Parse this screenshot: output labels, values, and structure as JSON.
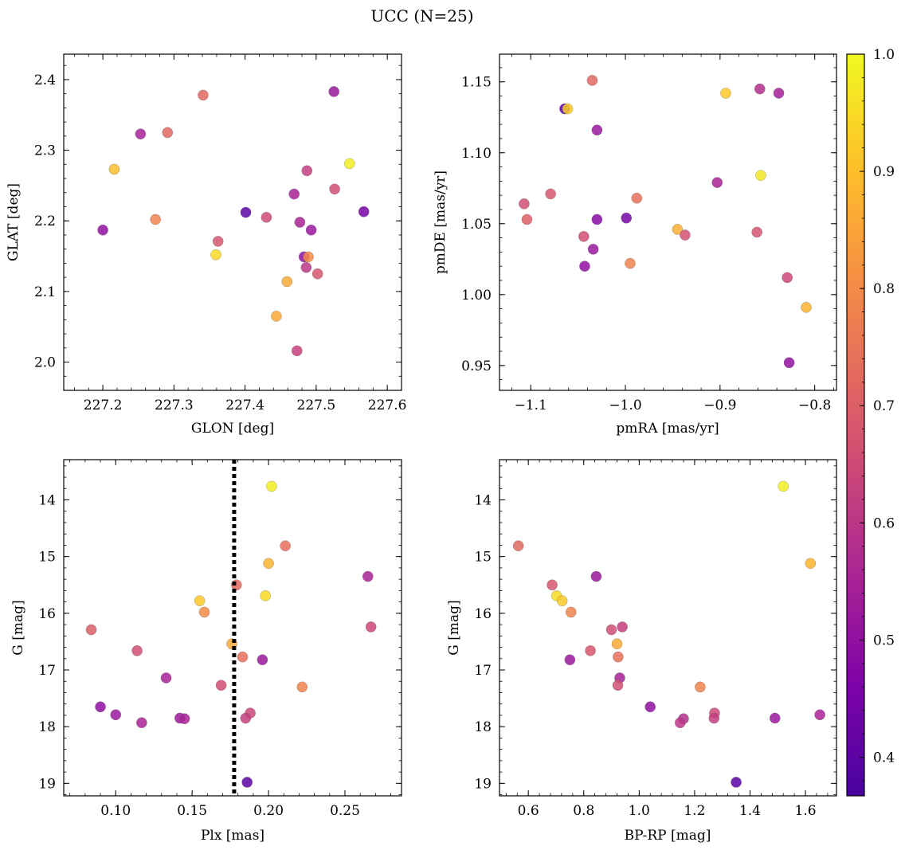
{
  "figure": {
    "suptitle": "UCC (N=25)"
  },
  "colorbar": {
    "colormap": "plasma",
    "range": [
      0.367,
      1.0
    ],
    "ticks": [
      0.4,
      0.5,
      0.6,
      0.7,
      0.8,
      0.9,
      1.0
    ],
    "tick_labels": [
      "0.4",
      "0.5",
      "0.6",
      "0.7",
      "0.8",
      "0.9",
      "1.0"
    ]
  },
  "chart_data": [
    {
      "type": "scatter",
      "id": "glon-glat",
      "xlabel": "GLON [deg]",
      "ylabel": "GLAT [deg]",
      "xlim": [
        227.145,
        227.62
      ],
      "ylim": [
        1.96,
        2.436
      ],
      "xticks": [
        227.2,
        227.3,
        227.4,
        227.5,
        227.6
      ],
      "xtick_labels": [
        "227.2",
        "227.3",
        "227.4",
        "227.5",
        "227.6"
      ],
      "yticks": [
        2.0,
        2.1,
        2.2,
        2.3,
        2.4
      ],
      "ytick_labels": [
        "2.0",
        "2.1",
        "2.2",
        "2.3",
        "2.4"
      ],
      "points": [
        {
          "x": 227.525,
          "y": 2.383,
          "c": 0.52
        },
        {
          "x": 227.341,
          "y": 2.378,
          "c": 0.72
        },
        {
          "x": 227.253,
          "y": 2.323,
          "c": 0.55
        },
        {
          "x": 227.291,
          "y": 2.325,
          "c": 0.72
        },
        {
          "x": 227.216,
          "y": 2.273,
          "c": 0.9
        },
        {
          "x": 227.547,
          "y": 2.281,
          "c": 0.98
        },
        {
          "x": 227.487,
          "y": 2.271,
          "c": 0.62
        },
        {
          "x": 227.526,
          "y": 2.245,
          "c": 0.66
        },
        {
          "x": 227.469,
          "y": 2.238,
          "c": 0.55
        },
        {
          "x": 227.567,
          "y": 2.213,
          "c": 0.45
        },
        {
          "x": 227.401,
          "y": 2.212,
          "c": 0.4
        },
        {
          "x": 227.43,
          "y": 2.205,
          "c": 0.65
        },
        {
          "x": 227.274,
          "y": 2.202,
          "c": 0.78
        },
        {
          "x": 227.477,
          "y": 2.198,
          "c": 0.55
        },
        {
          "x": 227.493,
          "y": 2.187,
          "c": 0.52
        },
        {
          "x": 227.2,
          "y": 2.187,
          "c": 0.5
        },
        {
          "x": 227.362,
          "y": 2.171,
          "c": 0.68
        },
        {
          "x": 227.359,
          "y": 2.152,
          "c": 0.95
        },
        {
          "x": 227.483,
          "y": 2.149,
          "c": 0.5
        },
        {
          "x": 227.489,
          "y": 2.149,
          "c": 0.8
        },
        {
          "x": 227.486,
          "y": 2.134,
          "c": 0.6
        },
        {
          "x": 227.502,
          "y": 2.125,
          "c": 0.68
        },
        {
          "x": 227.459,
          "y": 2.114,
          "c": 0.86
        },
        {
          "x": 227.444,
          "y": 2.065,
          "c": 0.86
        },
        {
          "x": 227.473,
          "y": 2.016,
          "c": 0.63
        }
      ]
    },
    {
      "type": "scatter",
      "id": "pmra-pmde",
      "xlabel": "pmRA [mas/yr]",
      "ylabel": "pmDE [mas/yr]",
      "xlim": [
        -1.133,
        -0.777
      ],
      "ylim": [
        0.9325,
        1.1695
      ],
      "xticks": [
        -1.1,
        -1.0,
        -0.9,
        -0.8
      ],
      "xtick_labels": [
        "−1.1",
        "−1.0",
        "−0.9",
        "−0.8"
      ],
      "yticks": [
        0.95,
        1.0,
        1.05,
        1.1,
        1.15
      ],
      "ytick_labels": [
        "0.95",
        "1.00",
        "1.05",
        "1.10",
        "1.15"
      ],
      "points": [
        {
          "x": -1.035,
          "y": 1.151,
          "c": 0.72
        },
        {
          "x": -0.858,
          "y": 1.145,
          "c": 0.58
        },
        {
          "x": -0.838,
          "y": 1.142,
          "c": 0.54
        },
        {
          "x": -0.894,
          "y": 1.142,
          "c": 0.92
        },
        {
          "x": -1.064,
          "y": 1.131,
          "c": 0.4
        },
        {
          "x": -1.061,
          "y": 1.131,
          "c": 0.93
        },
        {
          "x": -1.03,
          "y": 1.116,
          "c": 0.52
        },
        {
          "x": -0.857,
          "y": 1.084,
          "c": 0.97
        },
        {
          "x": -0.903,
          "y": 1.079,
          "c": 0.55
        },
        {
          "x": -1.079,
          "y": 1.071,
          "c": 0.68
        },
        {
          "x": -0.988,
          "y": 1.068,
          "c": 0.74
        },
        {
          "x": -1.107,
          "y": 1.064,
          "c": 0.66
        },
        {
          "x": -1.104,
          "y": 1.053,
          "c": 0.7
        },
        {
          "x": -0.999,
          "y": 1.054,
          "c": 0.45
        },
        {
          "x": -1.03,
          "y": 1.053,
          "c": 0.48
        },
        {
          "x": -0.945,
          "y": 1.046,
          "c": 0.87
        },
        {
          "x": -0.861,
          "y": 1.044,
          "c": 0.67
        },
        {
          "x": -0.937,
          "y": 1.042,
          "c": 0.67
        },
        {
          "x": -1.044,
          "y": 1.041,
          "c": 0.66
        },
        {
          "x": -1.034,
          "y": 1.032,
          "c": 0.52
        },
        {
          "x": -1.043,
          "y": 1.02,
          "c": 0.5
        },
        {
          "x": -0.995,
          "y": 1.022,
          "c": 0.78
        },
        {
          "x": -0.829,
          "y": 1.012,
          "c": 0.64
        },
        {
          "x": -0.809,
          "y": 0.991,
          "c": 0.88
        },
        {
          "x": -0.827,
          "y": 0.952,
          "c": 0.5
        }
      ]
    },
    {
      "type": "scatter",
      "id": "plx-g",
      "xlabel": "Plx [mas]",
      "ylabel": "G [mag]",
      "xlim": [
        0.066,
        0.287
      ],
      "ylim": [
        19.22,
        13.29
      ],
      "y_inverted": true,
      "xticks": [
        0.1,
        0.15,
        0.2,
        0.25
      ],
      "xtick_labels": [
        "0.10",
        "0.15",
        "0.20",
        "0.25"
      ],
      "yticks": [
        14,
        15,
        16,
        17,
        18,
        19
      ],
      "ytick_labels": [
        "14",
        "15",
        "16",
        "17",
        "18",
        "19"
      ],
      "vline_x": 0.1775,
      "points": [
        {
          "x": 0.202,
          "y": 13.76,
          "c": 0.98
        },
        {
          "x": 0.211,
          "y": 14.81,
          "c": 0.74
        },
        {
          "x": 0.2,
          "y": 15.12,
          "c": 0.88
        },
        {
          "x": 0.265,
          "y": 15.35,
          "c": 0.55
        },
        {
          "x": 0.179,
          "y": 15.5,
          "c": 0.72
        },
        {
          "x": 0.198,
          "y": 15.69,
          "c": 0.95
        },
        {
          "x": 0.155,
          "y": 15.78,
          "c": 0.92
        },
        {
          "x": 0.158,
          "y": 15.98,
          "c": 0.8
        },
        {
          "x": 0.267,
          "y": 16.24,
          "c": 0.64
        },
        {
          "x": 0.084,
          "y": 16.29,
          "c": 0.7
        },
        {
          "x": 0.176,
          "y": 16.54,
          "c": 0.86
        },
        {
          "x": 0.114,
          "y": 16.66,
          "c": 0.66
        },
        {
          "x": 0.183,
          "y": 16.77,
          "c": 0.74
        },
        {
          "x": 0.196,
          "y": 16.82,
          "c": 0.52
        },
        {
          "x": 0.133,
          "y": 17.14,
          "c": 0.55
        },
        {
          "x": 0.169,
          "y": 17.27,
          "c": 0.66
        },
        {
          "x": 0.222,
          "y": 17.3,
          "c": 0.78
        },
        {
          "x": 0.09,
          "y": 17.65,
          "c": 0.5
        },
        {
          "x": 0.188,
          "y": 17.76,
          "c": 0.64
        },
        {
          "x": 0.1,
          "y": 17.79,
          "c": 0.52
        },
        {
          "x": 0.185,
          "y": 17.85,
          "c": 0.62
        },
        {
          "x": 0.142,
          "y": 17.85,
          "c": 0.52
        },
        {
          "x": 0.145,
          "y": 17.86,
          "c": 0.55
        },
        {
          "x": 0.117,
          "y": 17.93,
          "c": 0.55
        },
        {
          "x": 0.186,
          "y": 18.98,
          "c": 0.4
        }
      ]
    },
    {
      "type": "scatter",
      "id": "bprp-g",
      "xlabel": "BP-RP [mag]",
      "ylabel": "G [mag]",
      "xlim": [
        0.496,
        1.712
      ],
      "ylim": [
        19.22,
        13.29
      ],
      "y_inverted": true,
      "xticks": [
        0.6,
        0.8,
        1.0,
        1.2,
        1.4,
        1.6
      ],
      "xtick_labels": [
        "0.6",
        "0.8",
        "1.0",
        "1.2",
        "1.4",
        "1.6"
      ],
      "yticks": [
        14,
        15,
        16,
        17,
        18,
        19
      ],
      "ytick_labels": [
        "14",
        "15",
        "16",
        "17",
        "18",
        "19"
      ],
      "points": [
        {
          "x": 1.52,
          "y": 13.76,
          "c": 0.98
        },
        {
          "x": 0.564,
          "y": 14.81,
          "c": 0.72
        },
        {
          "x": 1.618,
          "y": 15.12,
          "c": 0.88
        },
        {
          "x": 0.845,
          "y": 15.35,
          "c": 0.52
        },
        {
          "x": 0.686,
          "y": 15.5,
          "c": 0.68
        },
        {
          "x": 0.702,
          "y": 15.69,
          "c": 0.95
        },
        {
          "x": 0.722,
          "y": 15.78,
          "c": 0.92
        },
        {
          "x": 0.754,
          "y": 15.98,
          "c": 0.78
        },
        {
          "x": 0.939,
          "y": 16.24,
          "c": 0.62
        },
        {
          "x": 0.9,
          "y": 16.29,
          "c": 0.66
        },
        {
          "x": 0.92,
          "y": 16.54,
          "c": 0.86
        },
        {
          "x": 0.824,
          "y": 16.66,
          "c": 0.68
        },
        {
          "x": 0.924,
          "y": 16.77,
          "c": 0.74
        },
        {
          "x": 0.75,
          "y": 16.82,
          "c": 0.52
        },
        {
          "x": 0.93,
          "y": 17.14,
          "c": 0.55
        },
        {
          "x": 0.923,
          "y": 17.27,
          "c": 0.66
        },
        {
          "x": 1.22,
          "y": 17.3,
          "c": 0.78
        },
        {
          "x": 1.04,
          "y": 17.65,
          "c": 0.5
        },
        {
          "x": 1.272,
          "y": 17.76,
          "c": 0.64
        },
        {
          "x": 1.652,
          "y": 17.79,
          "c": 0.55
        },
        {
          "x": 1.27,
          "y": 17.85,
          "c": 0.62
        },
        {
          "x": 1.49,
          "y": 17.85,
          "c": 0.52
        },
        {
          "x": 1.16,
          "y": 17.86,
          "c": 0.58
        },
        {
          "x": 1.148,
          "y": 17.93,
          "c": 0.6
        },
        {
          "x": 1.35,
          "y": 18.98,
          "c": 0.4
        }
      ]
    }
  ]
}
